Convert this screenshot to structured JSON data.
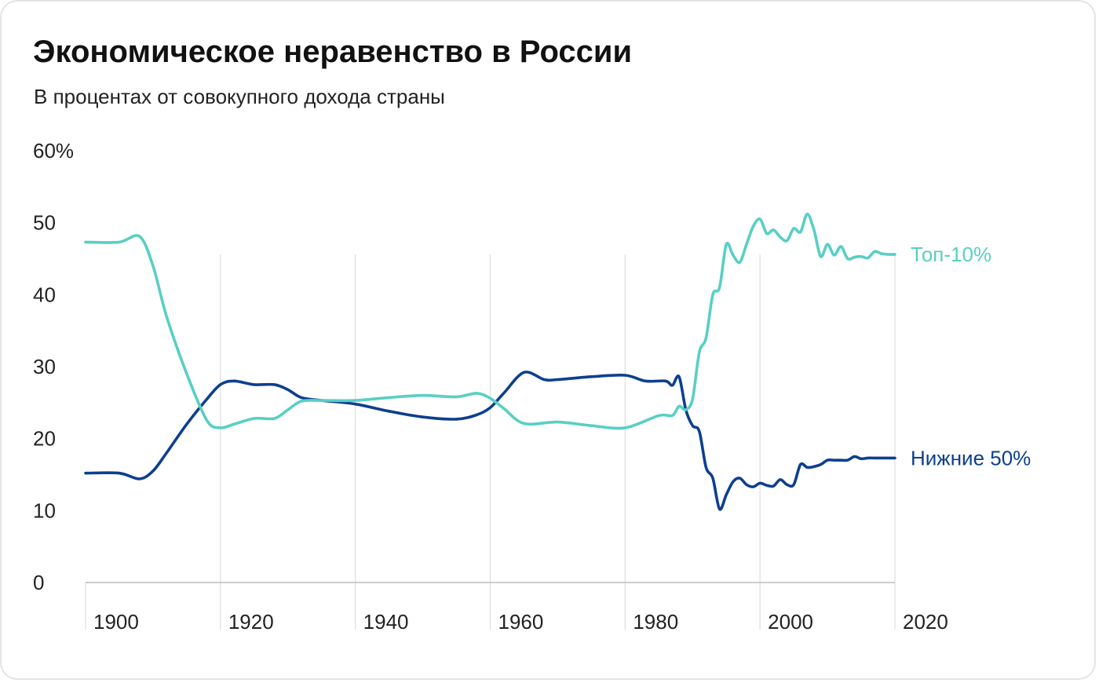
{
  "title": "Экономическое неравенство в России",
  "subtitle": "В процентах от совокупного дохода страны",
  "colors": {
    "top10": "#58cfc4",
    "bottom50": "#0d3f8f",
    "axis": "#bdbdbd",
    "grid": "#dedede",
    "text": "#222222"
  },
  "chart_data": {
    "type": "line",
    "y_unit_label": "60%",
    "ylim": [
      0,
      60
    ],
    "xlim": [
      1900,
      2020
    ],
    "yticks": [
      {
        "value": 60,
        "label": "60%"
      },
      {
        "value": 50,
        "label": "50"
      },
      {
        "value": 40,
        "label": "40"
      },
      {
        "value": 30,
        "label": "30"
      },
      {
        "value": 20,
        "label": "20"
      },
      {
        "value": 10,
        "label": "10"
      },
      {
        "value": 0,
        "label": "0"
      }
    ],
    "xticks": [
      {
        "value": 1900,
        "label": "1900"
      },
      {
        "value": 1920,
        "label": "1920"
      },
      {
        "value": 1940,
        "label": "1940"
      },
      {
        "value": 1960,
        "label": "1960"
      },
      {
        "value": 1980,
        "label": "1980"
      },
      {
        "value": 2000,
        "label": "2000"
      },
      {
        "value": 2020,
        "label": "2020"
      }
    ],
    "grid": "vertical",
    "series": [
      {
        "key": "top10",
        "name": "Топ-10%",
        "x": [
          1900,
          1905,
          1908,
          1910,
          1912,
          1915,
          1918,
          1920,
          1922,
          1925,
          1928,
          1930,
          1932,
          1935,
          1940,
          1945,
          1950,
          1955,
          1958,
          1960,
          1962,
          1965,
          1970,
          1975,
          1980,
          1985,
          1987,
          1988,
          1989,
          1990,
          1991,
          1992,
          1993,
          1994,
          1995,
          1996,
          1997,
          1998,
          1999,
          2000,
          2001,
          2002,
          2003,
          2004,
          2005,
          2006,
          2007,
          2008,
          2009,
          2010,
          2011,
          2012,
          2013,
          2014,
          2015,
          2016,
          2017,
          2018,
          2019,
          2020
        ],
        "y": [
          47.3,
          47.3,
          48.1,
          44,
          37,
          29,
          22.5,
          21.5,
          22,
          22.8,
          22.8,
          24,
          25.2,
          25.3,
          25.3,
          25.7,
          26,
          25.8,
          26.3,
          25.6,
          24.2,
          22.1,
          22.3,
          21.8,
          21.5,
          23.2,
          23.2,
          24.5,
          24,
          25.5,
          32,
          34,
          40,
          41,
          47,
          45.5,
          44.5,
          47,
          49.5,
          50.5,
          48.5,
          49,
          48,
          47.5,
          49.2,
          48.7,
          51.2,
          49,
          45.3,
          47,
          45.5,
          46.7,
          45,
          45.2,
          45.3,
          45.1,
          46,
          45.7,
          45.6,
          45.6
        ]
      },
      {
        "key": "bottom50",
        "name": "Нижние 50%",
        "x": [
          1900,
          1905,
          1908,
          1910,
          1912,
          1915,
          1918,
          1920,
          1922,
          1925,
          1928,
          1930,
          1932,
          1935,
          1940,
          1945,
          1950,
          1955,
          1958,
          1960,
          1962,
          1965,
          1968,
          1970,
          1975,
          1980,
          1983,
          1986,
          1987,
          1988,
          1989,
          1990,
          1991,
          1992,
          1993,
          1994,
          1995,
          1996,
          1997,
          1998,
          1999,
          2000,
          2001,
          2002,
          2003,
          2004,
          2005,
          2006,
          2007,
          2008,
          2009,
          2010,
          2011,
          2012,
          2013,
          2014,
          2015,
          2016,
          2017,
          2018,
          2019,
          2020
        ],
        "y": [
          15.2,
          15.2,
          14.4,
          15.5,
          18,
          22,
          25.5,
          27.5,
          28,
          27.5,
          27.5,
          26.8,
          25.7,
          25.3,
          24.8,
          23.8,
          23,
          22.7,
          23.3,
          24.3,
          26.3,
          29.2,
          28.2,
          28.2,
          28.6,
          28.8,
          28,
          28,
          27.4,
          28.6,
          24,
          21.8,
          21,
          16,
          14.5,
          10.2,
          12.2,
          14,
          14.5,
          13.6,
          13.3,
          13.8,
          13.5,
          13.4,
          14.3,
          13.6,
          13.6,
          16.4,
          16,
          16.1,
          16.4,
          17,
          17,
          17,
          17,
          17.5,
          17.2,
          17.3,
          17.3,
          17.3,
          17.3,
          17.3
        ]
      }
    ]
  }
}
